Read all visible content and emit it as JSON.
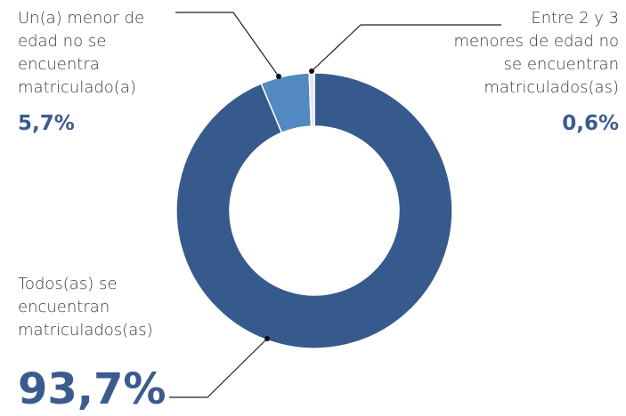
{
  "chart_data": {
    "type": "donut",
    "categories": [
      "Todos(as) se\nencuentran\nmatriculados(as)",
      "Un(a) menor de\nedad no se\nencuentra\nmatriculado(a)",
      "Entre 2 y 3\nmenores de edad no\nse encuentran\nmatriculados(as)"
    ],
    "values": [
      93.7,
      5.7,
      0.6
    ],
    "value_labels": [
      "93,7%",
      "5,7%",
      "0,6%"
    ],
    "colors": [
      "#365a8c",
      "#5189c0",
      "#dfe7ef"
    ]
  }
}
